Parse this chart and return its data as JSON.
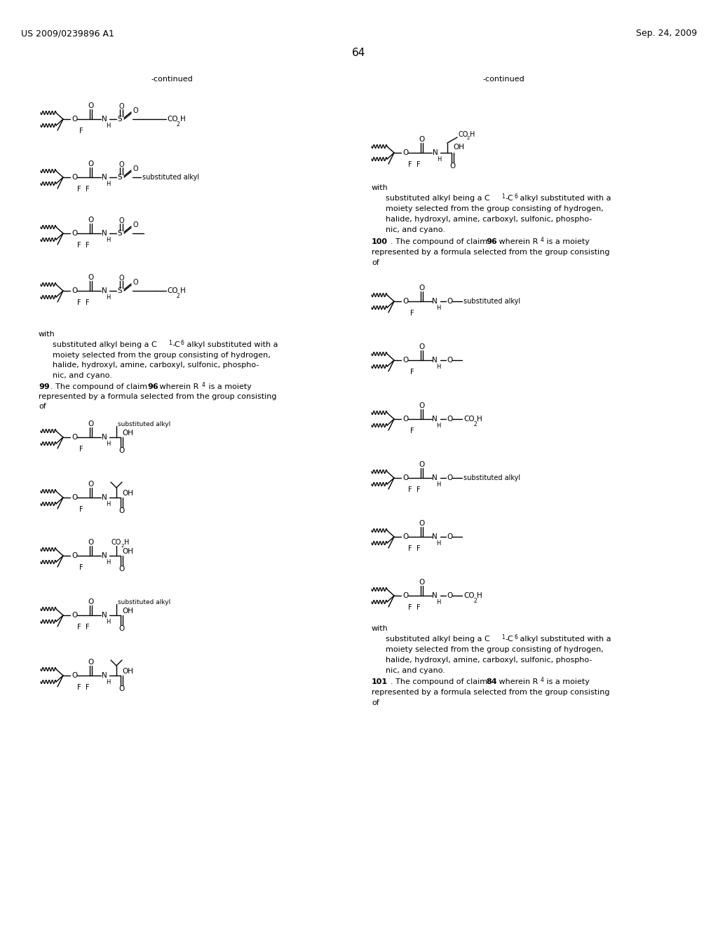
{
  "page_number": "64",
  "left_header": "US 2009/0239896 A1",
  "right_header": "Sep. 24, 2009",
  "bg": "#ffffff"
}
